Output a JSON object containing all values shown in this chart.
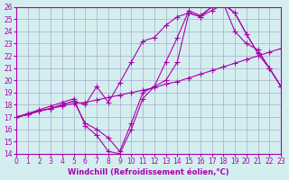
{
  "bg_color": "#d4eef0",
  "line_color": "#aa00aa",
  "grid_color": "#aaaacc",
  "xlabel": "Windchill (Refroidissement éolien,°C)",
  "xlim": [
    0,
    23
  ],
  "ylim": [
    14,
    26
  ],
  "yticks": [
    14,
    15,
    16,
    17,
    18,
    19,
    20,
    21,
    22,
    23,
    24,
    25,
    26
  ],
  "xticks": [
    0,
    1,
    2,
    3,
    4,
    5,
    6,
    7,
    8,
    9,
    10,
    11,
    12,
    13,
    14,
    15,
    16,
    17,
    18,
    19,
    20,
    21,
    22,
    23
  ],
  "lines": [
    {
      "x": [
        0,
        1,
        2,
        3,
        4,
        5,
        6,
        7,
        8,
        9,
        10,
        11,
        12,
        13,
        14,
        15,
        16,
        17,
        18,
        19,
        20,
        21,
        22,
        23
      ],
      "y": [
        17.0,
        17.2,
        17.5,
        17.7,
        17.9,
        18.1,
        18.2,
        18.4,
        18.6,
        18.8,
        19.0,
        19.2,
        19.4,
        19.7,
        19.9,
        20.2,
        20.5,
        20.8,
        21.1,
        21.4,
        21.7,
        22.0,
        22.3,
        22.6
      ]
    },
    {
      "x": [
        0,
        1,
        2,
        3,
        4,
        5,
        6,
        7,
        8,
        9,
        10,
        11,
        12,
        13,
        14,
        15,
        16,
        17,
        18,
        19,
        20,
        21,
        22,
        23
      ],
      "y": [
        17.0,
        17.2,
        17.5,
        17.7,
        18.0,
        18.3,
        18.0,
        19.5,
        18.2,
        19.8,
        21.5,
        23.2,
        23.5,
        24.5,
        25.2,
        25.5,
        25.2,
        25.7,
        26.2,
        25.5,
        23.8,
        22.2,
        21.0,
        19.5
      ]
    },
    {
      "x": [
        0,
        1,
        2,
        3,
        4,
        5,
        6,
        7,
        8,
        9,
        10,
        11,
        12,
        13,
        14,
        15,
        16,
        17,
        18,
        19,
        20,
        21,
        22,
        23
      ],
      "y": [
        17.0,
        17.3,
        17.6,
        17.9,
        18.2,
        18.5,
        16.3,
        15.5,
        14.2,
        14.0,
        16.0,
        18.5,
        19.5,
        20.0,
        21.5,
        25.5,
        25.2,
        26.0,
        26.3,
        25.5,
        23.8,
        22.2,
        21.0,
        19.5
      ]
    },
    {
      "x": [
        0,
        1,
        2,
        3,
        4,
        5,
        6,
        7,
        8,
        9,
        10,
        11,
        12,
        13,
        14,
        15,
        16,
        17,
        18,
        19,
        20,
        21,
        22,
        23
      ],
      "y": [
        17.0,
        17.2,
        17.5,
        17.7,
        18.0,
        18.3,
        16.5,
        16.0,
        15.3,
        14.2,
        16.5,
        19.0,
        19.5,
        21.5,
        23.5,
        25.7,
        25.3,
        26.0,
        26.3,
        24.0,
        23.0,
        22.5,
        21.0,
        19.5
      ]
    }
  ]
}
